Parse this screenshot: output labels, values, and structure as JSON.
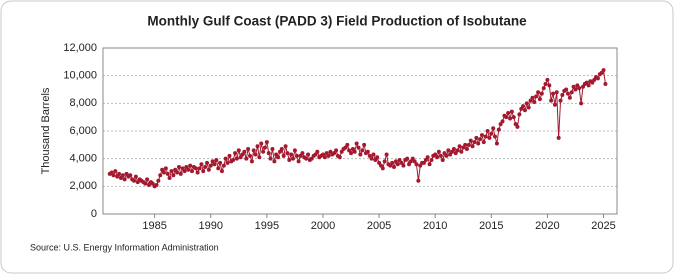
{
  "chart_data": {
    "type": "line",
    "title": "Monthly Gulf Coast (PADD 3) Field Production of Isobutane",
    "y_label": "Thousand Barrels",
    "source": "Source: U.S. Energy Information Administration",
    "color": "#a3192f",
    "grid": true,
    "xlim": [
      1980.4,
      2026.2
    ],
    "xticks": [
      1985,
      1990,
      1995,
      2000,
      2005,
      2010,
      2015,
      2020,
      2025
    ],
    "ylim": [
      0,
      12000
    ],
    "yticks": [
      0,
      {
        "value": 2000,
        "label": "2,000"
      },
      {
        "value": 4000,
        "label": "4,000"
      },
      {
        "value": 6000,
        "label": "6,000"
      },
      {
        "value": 8000,
        "label": "8,000"
      },
      {
        "value": 10000,
        "label": "10,000"
      },
      {
        "value": 12000,
        "label": "12,000"
      }
    ],
    "x": [
      1981,
      1981.17,
      1981.33,
      1981.5,
      1981.67,
      1981.83,
      1982,
      1982.17,
      1982.33,
      1982.5,
      1982.67,
      1982.83,
      1983,
      1983.17,
      1983.33,
      1983.5,
      1983.67,
      1983.83,
      1984,
      1984.17,
      1984.33,
      1984.5,
      1984.67,
      1984.83,
      1985,
      1985.17,
      1985.33,
      1985.5,
      1985.67,
      1985.83,
      1986,
      1986.17,
      1986.33,
      1986.5,
      1986.67,
      1986.83,
      1987,
      1987.17,
      1987.33,
      1987.5,
      1987.67,
      1987.83,
      1988,
      1988.17,
      1988.33,
      1988.5,
      1988.67,
      1988.83,
      1989,
      1989.17,
      1989.33,
      1989.5,
      1989.67,
      1989.83,
      1990,
      1990.17,
      1990.33,
      1990.5,
      1990.67,
      1990.83,
      1991,
      1991.17,
      1991.33,
      1991.5,
      1991.67,
      1991.83,
      1992,
      1992.17,
      1992.33,
      1992.5,
      1992.67,
      1992.83,
      1993,
      1993.17,
      1993.33,
      1993.5,
      1993.67,
      1993.83,
      1994,
      1994.17,
      1994.33,
      1994.5,
      1994.67,
      1994.83,
      1995,
      1995.17,
      1995.33,
      1995.5,
      1995.67,
      1995.83,
      1996,
      1996.17,
      1996.33,
      1996.5,
      1996.67,
      1996.83,
      1997,
      1997.17,
      1997.33,
      1997.5,
      1997.67,
      1997.83,
      1998,
      1998.17,
      1998.33,
      1998.5,
      1998.67,
      1998.83,
      1999,
      1999.17,
      1999.33,
      1999.5,
      1999.67,
      1999.83,
      2000,
      2000.17,
      2000.33,
      2000.5,
      2000.67,
      2000.83,
      2001,
      2001.17,
      2001.33,
      2001.5,
      2001.67,
      2001.83,
      2002,
      2002.17,
      2002.33,
      2002.5,
      2002.67,
      2002.83,
      2003,
      2003.17,
      2003.33,
      2003.5,
      2003.67,
      2003.83,
      2004,
      2004.17,
      2004.33,
      2004.5,
      2004.67,
      2004.83,
      2005,
      2005.17,
      2005.33,
      2005.5,
      2005.67,
      2005.83,
      2006,
      2006.17,
      2006.33,
      2006.5,
      2006.67,
      2006.83,
      2007,
      2007.17,
      2007.33,
      2007.5,
      2007.67,
      2007.83,
      2008,
      2008.17,
      2008.33,
      2008.5,
      2008.67,
      2008.83,
      2009,
      2009.17,
      2009.33,
      2009.5,
      2009.67,
      2009.83,
      2010,
      2010.17,
      2010.33,
      2010.5,
      2010.67,
      2010.83,
      2011,
      2011.17,
      2011.33,
      2011.5,
      2011.67,
      2011.83,
      2012,
      2012.17,
      2012.33,
      2012.5,
      2012.67,
      2012.83,
      2013,
      2013.17,
      2013.33,
      2013.5,
      2013.67,
      2013.83,
      2014,
      2014.17,
      2014.33,
      2014.5,
      2014.67,
      2014.83,
      2015,
      2015.17,
      2015.33,
      2015.5,
      2015.67,
      2015.83,
      2016,
      2016.17,
      2016.33,
      2016.5,
      2016.67,
      2016.83,
      2017,
      2017.17,
      2017.33,
      2017.5,
      2017.67,
      2017.83,
      2018,
      2018.17,
      2018.33,
      2018.5,
      2018.67,
      2018.83,
      2019,
      2019.17,
      2019.33,
      2019.5,
      2019.67,
      2019.83,
      2020,
      2020.17,
      2020.33,
      2020.5,
      2020.67,
      2020.83,
      2021,
      2021.17,
      2021.33,
      2021.5,
      2021.67,
      2021.83,
      2022,
      2022.17,
      2022.33,
      2022.5,
      2022.67,
      2022.83,
      2023,
      2023.17,
      2023.33,
      2023.5,
      2023.67,
      2023.83,
      2024,
      2024.17,
      2024.33,
      2024.5,
      2024.67,
      2024.83,
      2025,
      2025.17
    ],
    "values": [
      2900,
      3000,
      2800,
      3100,
      2700,
      2900,
      2600,
      2800,
      2500,
      2900,
      2700,
      2800,
      2500,
      2400,
      2700,
      2300,
      2500,
      2400,
      2300,
      2200,
      2500,
      2100,
      2300,
      2200,
      2000,
      2100,
      2400,
      2800,
      3200,
      3000,
      3300,
      2900,
      2600,
      3100,
      2800,
      3200,
      3000,
      3400,
      2900,
      3300,
      3100,
      3400,
      3200,
      3500,
      3100,
      3400,
      3300,
      3000,
      3300,
      3600,
      3100,
      3400,
      3700,
      3200,
      3500,
      3800,
      3600,
      3900,
      3300,
      3700,
      3100,
      3500,
      4000,
      3700,
      4200,
      3800,
      3900,
      4400,
      4000,
      4600,
      4100,
      4300,
      4500,
      4000,
      4700,
      4200,
      3800,
      4600,
      4300,
      4900,
      4100,
      5100,
      4500,
      4800,
      5200,
      4400,
      4000,
      4700,
      3800,
      4300,
      4100,
      4500,
      4700,
      4200,
      4900,
      4400,
      3900,
      4300,
      4000,
      4600,
      4200,
      3800,
      4200,
      4400,
      4100,
      4000,
      4300,
      3900,
      4000,
      4200,
      4300,
      4500,
      4100,
      4200,
      4300,
      4100,
      4400,
      4200,
      4500,
      4300,
      4400,
      4600,
      4200,
      4100,
      4500,
      4700,
      4800,
      5000,
      4600,
      4400,
      4700,
      4500,
      5100,
      4800,
      4300,
      4600,
      5000,
      4400,
      4500,
      4200,
      4000,
      4300,
      3900,
      4100,
      3700,
      3500,
      3300,
      3800,
      4300,
      3600,
      3500,
      3700,
      3400,
      3800,
      3600,
      3900,
      3700,
      3500,
      3900,
      4000,
      3600,
      3800,
      4000,
      3800,
      3600,
      2400,
      3500,
      3700,
      3700,
      3900,
      4100,
      3600,
      3900,
      4200,
      4300,
      4100,
      4500,
      4200,
      3900,
      4400,
      4200,
      4600,
      4300,
      4500,
      4700,
      4400,
      4600,
      4900,
      4500,
      4800,
      5000,
      4700,
      5000,
      5300,
      4900,
      5200,
      5500,
      5100,
      5400,
      5700,
      5200,
      5600,
      6000,
      5500,
      5800,
      6200,
      5600,
      5100,
      6100,
      6500,
      6700,
      7100,
      7000,
      7300,
      6900,
      7400,
      7000,
      6500,
      6300,
      7200,
      7600,
      7800,
      7500,
      8000,
      7700,
      8200,
      8400,
      8100,
      8500,
      8800,
      8300,
      8700,
      9100,
      9400,
      9700,
      9300,
      8200,
      8700,
      7900,
      8800,
      5500,
      8200,
      8600,
      8900,
      9000,
      8700,
      8400,
      8800,
      9200,
      9000,
      9300,
      9100,
      8000,
      9200,
      9400,
      9500,
      9300,
      9600,
      9500,
      9700,
      9900,
      9800,
      10100,
      10200,
      10400,
      9400
    ]
  }
}
